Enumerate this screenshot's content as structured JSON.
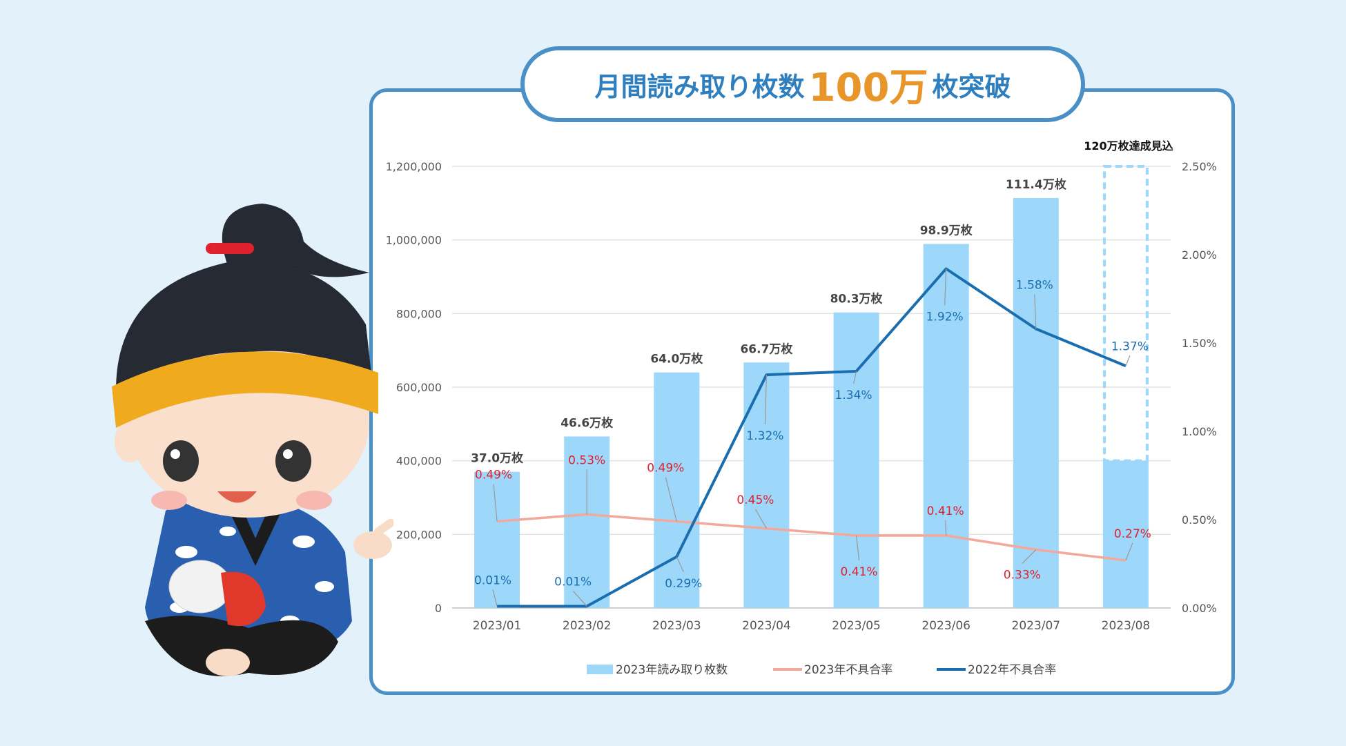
{
  "title": {
    "before": "月間読み取り枚数",
    "highlight": "100万",
    "after": "枚突破"
  },
  "colors": {
    "bar": "#9dd8fa",
    "line2023": "#f3a89c",
    "line2022": "#1a6eb0",
    "red_label": "#e0202c",
    "blue_label": "#1a6eb0",
    "border": "#4a90c6",
    "accent": "#e8962a"
  },
  "chart_data": {
    "type": "bar",
    "categories": [
      "2023/01",
      "2023/02",
      "2023/03",
      "2023/04",
      "2023/05",
      "2023/06",
      "2023/07",
      "2023/08"
    ],
    "series": [
      {
        "name": "2023年読み取り枚数",
        "type": "bar",
        "axis": "left",
        "values": [
          370000,
          466000,
          640000,
          667000,
          803000,
          989000,
          1114000,
          400000
        ]
      },
      {
        "name": "2023年不具合率",
        "type": "line",
        "axis": "right",
        "values": [
          0.49,
          0.53,
          0.49,
          0.45,
          0.41,
          0.41,
          0.33,
          0.27
        ]
      },
      {
        "name": "2022年不具合率",
        "type": "line",
        "axis": "right",
        "values": [
          0.01,
          0.01,
          0.29,
          1.32,
          1.34,
          1.92,
          1.58,
          1.37
        ]
      }
    ],
    "bar_labels": [
      "37.0万枚",
      "46.6万枚",
      "64.0万枚",
      "66.7万枚",
      "80.3万枚",
      "98.9万枚",
      "111.4万枚",
      ""
    ],
    "rate2023_labels": [
      "0.49%",
      "0.53%",
      "0.49%",
      "0.45%",
      "0.41%",
      "0.41%",
      "0.33%",
      "0.27%"
    ],
    "rate2022_labels": [
      "0.01%",
      "0.01%",
      "0.29%",
      "1.32%",
      "1.34%",
      "1.92%",
      "1.58%",
      "1.37%"
    ],
    "projection": {
      "label": "120万枚達成見込",
      "value": 1200000,
      "category": "2023/08"
    },
    "y_left": {
      "min": 0,
      "max": 1200000,
      "ticks": [
        0,
        200000,
        400000,
        600000,
        800000,
        1000000,
        1200000
      ],
      "tick_labels": [
        "0",
        "200,000",
        "400,000",
        "600,000",
        "800,000",
        "1,000,000",
        "1,200,000"
      ]
    },
    "y_right": {
      "min": 0,
      "max": 2.5,
      "ticks": [
        0,
        0.5,
        1.0,
        1.5,
        2.0,
        2.5
      ],
      "tick_labels": [
        "0.00%",
        "0.50%",
        "1.00%",
        "1.50%",
        "2.00%",
        "2.50%"
      ]
    },
    "legend": [
      "2023年読み取り枚数",
      "2023年不具合率",
      "2022年不具合率"
    ],
    "legend_position": "bottom",
    "grid": true
  }
}
